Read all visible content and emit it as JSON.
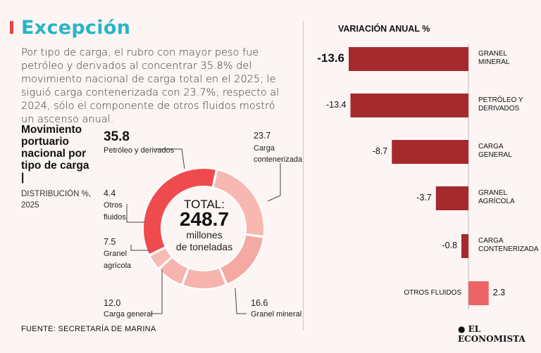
{
  "header": {
    "title": "Excepción"
  },
  "intro": "Por tipo de carga, el rubro con mayor peso fue petróleo y derivados al concentrar 35.8% del movimiento nacional de carga total en el 2025; le siguió carga contenerizada con 23.7%; respecto al 2024, sólo el componente de otros fluidos mostró un ascenso anual.",
  "donut_title": "Movimiento portuario nacional por tipo de carga |",
  "donut_subtitle": "DISTRIBUCIÓN %, 2025",
  "total": {
    "label": "TOTAL:",
    "value": "248.7",
    "unit_line1": "millones",
    "unit_line2": "de toneladas"
  },
  "footer": "FUENTE: SECRETARÍA DE MARINA",
  "brand": "EL ECONOMISTA",
  "colors": {
    "dark_red": "#a52a2e",
    "accent": "#e8414b",
    "light": "#f7b3ad",
    "mid": "#f3a8a2",
    "teal": "#27b5c4",
    "bg": "#fdf4f4"
  },
  "chart_data": [
    {
      "type": "pie",
      "title": "Movimiento portuario nacional por tipo de carga | DISTRIBUCIÓN %, 2025",
      "categories": [
        "Petróleo y derivados",
        "Carga contenerizada",
        "Granel mineral",
        "Carga general",
        "Granel agrícola",
        "Otros fluidos"
      ],
      "values": [
        35.8,
        23.7,
        16.6,
        12.0,
        7.5,
        4.4
      ],
      "labels": [
        {
          "value": "35.8",
          "name": "Petróleo y derivados"
        },
        {
          "value": "23.7",
          "name_line1": "Carga",
          "name_line2": "contenerizada"
        },
        {
          "value": "16.6",
          "name": "Granel mineral"
        },
        {
          "value": "12.0",
          "name": "Carga general"
        },
        {
          "value": "7.5",
          "name_line1": "Granel",
          "name_line2": "agrícola"
        },
        {
          "value": "4.4",
          "name_line1": "Otros",
          "name_line2": "fluidos"
        }
      ]
    },
    {
      "type": "bar",
      "orientation": "horizontal",
      "title": "VARIACIÓN ANUAL %",
      "categories": [
        {
          "line1": "GRANEL",
          "line2": "MINERAL"
        },
        {
          "line1": "PETRÓLEO Y",
          "line2": "DERIVADOS"
        },
        {
          "line1": "CARGA",
          "line2": "GENERAL"
        },
        {
          "line1": "GRANEL",
          "line2": "AGRÍCOLA"
        },
        {
          "line1": "CARGA",
          "line2": "CONTENERIZADA"
        },
        {
          "line1": "OTROS FLUIDOS",
          "line2": ""
        }
      ],
      "values": [
        -13.6,
        -13.4,
        -8.7,
        -3.7,
        -0.8,
        2.3
      ],
      "value_labels": [
        "-13.6",
        "-13.4",
        "-8.7",
        "-3.7",
        "-0.8",
        "2.3"
      ],
      "xlim": [
        -14,
        3
      ]
    }
  ]
}
